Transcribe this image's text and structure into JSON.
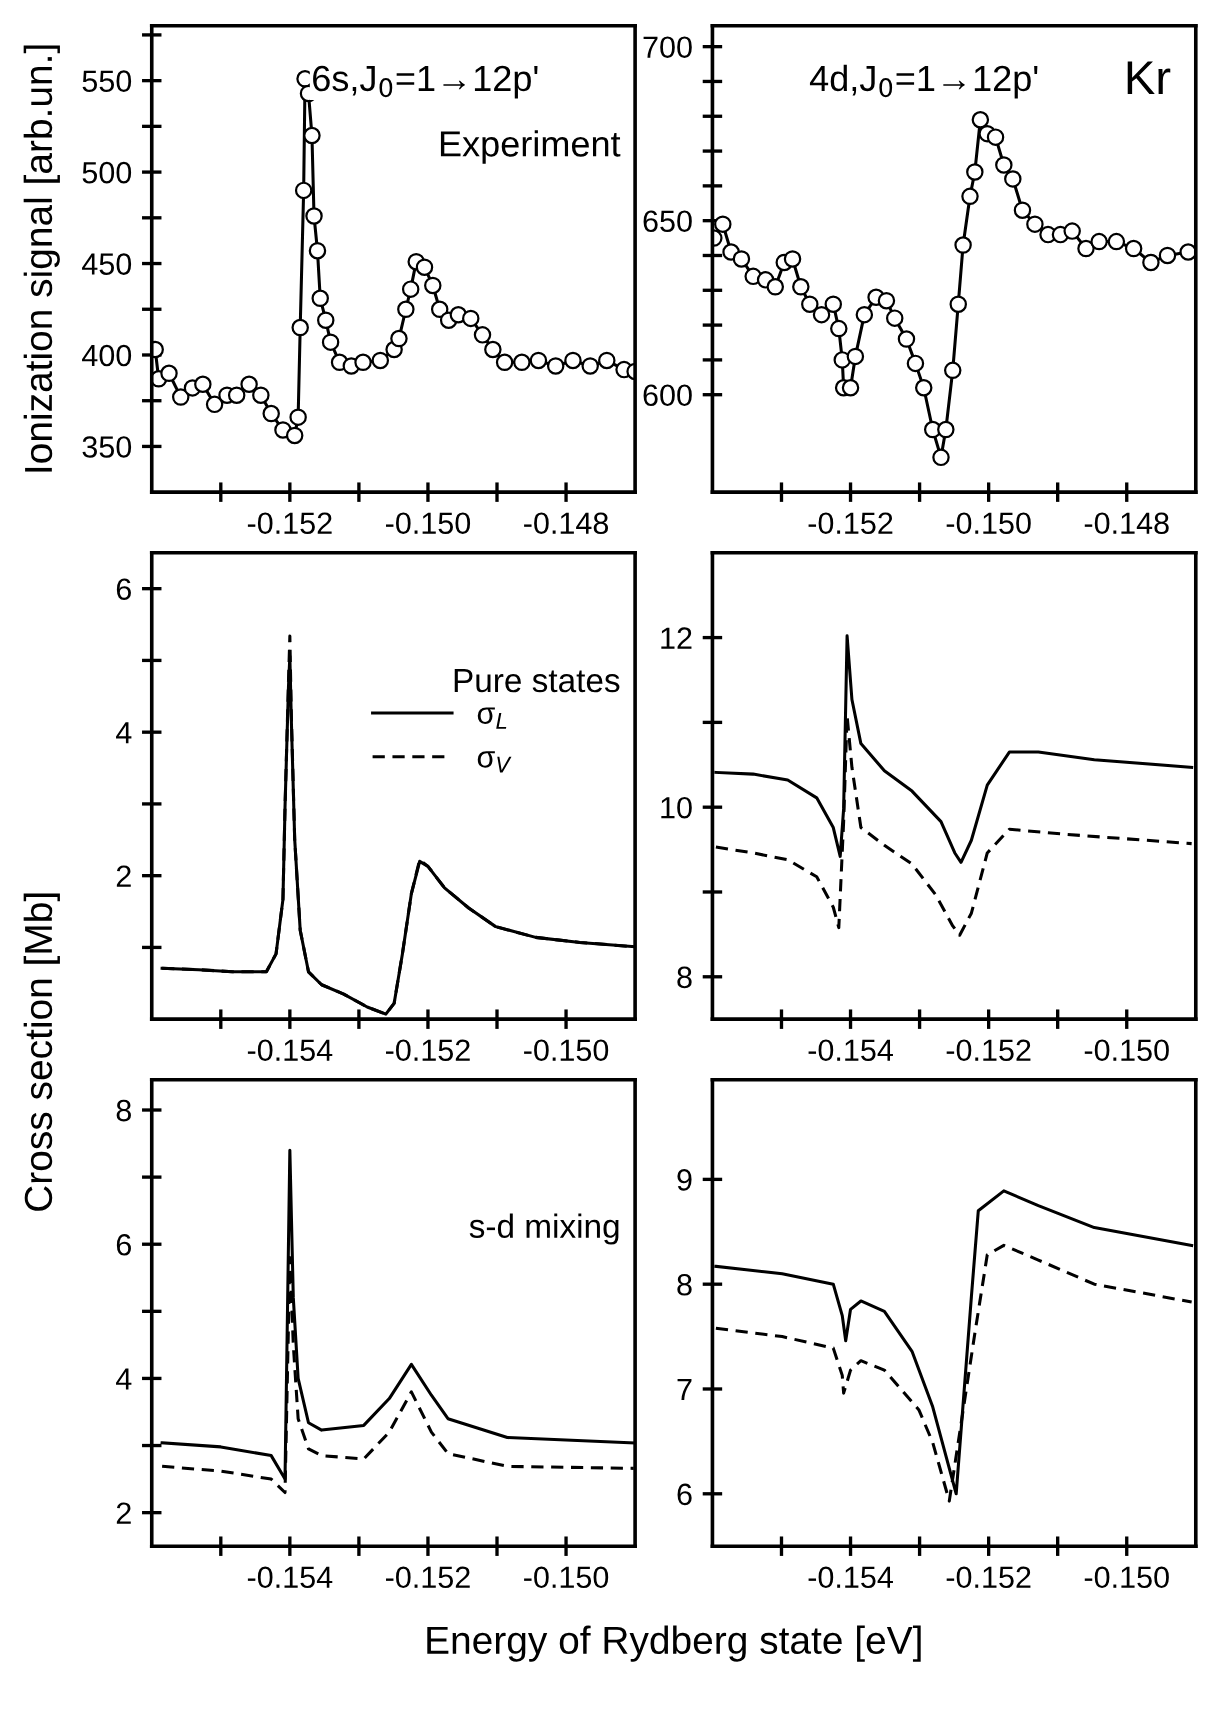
{
  "chart_data": [
    {
      "type": "line",
      "ylabel": "Ionization signal [arb.un.]",
      "annotations": [
        "6s,J$_{0}$=1→12p'",
        "Experiment"
      ],
      "xlim": [
        -0.154,
        -0.147
      ],
      "ylim": [
        325,
        580
      ],
      "xticks": [
        {
          "value": -0.153,
          "label": null
        },
        -0.152,
        {
          "value": -0.151,
          "label": null
        },
        {
          "value": -0.15,
          "label": "-0.150"
        },
        {
          "value": -0.149,
          "label": null
        },
        -0.148
      ],
      "yticks": [
        350,
        {
          "value": 375,
          "label": null
        },
        400,
        {
          "value": 425,
          "label": null
        },
        450,
        {
          "value": 475,
          "label": null
        },
        500,
        {
          "value": 525,
          "label": null
        },
        550,
        {
          "value": 575,
          "label": null
        }
      ],
      "marker": "circle",
      "grid": false,
      "legend": false,
      "series": [
        {
          "color": "#000000",
          "line_style": "solid",
          "x": [
            -0.15395,
            -0.1539,
            -0.15375,
            -0.15358,
            -0.15341,
            -0.15326,
            -0.15309,
            -0.15291,
            -0.15277,
            -0.15259,
            -0.15242,
            -0.15227,
            -0.1521,
            -0.15193,
            -0.15188,
            -0.15185,
            -0.1518,
            -0.15178,
            -0.15173,
            -0.15168,
            -0.15165,
            -0.1516,
            -0.15156,
            -0.15148,
            -0.15141,
            -0.15128,
            -0.15111,
            -0.15094,
            -0.15069,
            -0.15049,
            -0.15042,
            -0.15032,
            -0.15025,
            -0.15017,
            -0.15005,
            -0.14993,
            -0.14983,
            -0.1497,
            -0.14956,
            -0.14938,
            -0.14921,
            -0.14906,
            -0.14889,
            -0.14864,
            -0.1484,
            -0.14815,
            -0.1479,
            -0.14765,
            -0.14741,
            -0.14716,
            -0.147
          ],
          "values": [
            403,
            387,
            390,
            377,
            382,
            384,
            373,
            378,
            378,
            384,
            378,
            368,
            359,
            356,
            366,
            415,
            490,
            551,
            543,
            520,
            476,
            457,
            431,
            419,
            407,
            396,
            394,
            396,
            397,
            403,
            409,
            425,
            436,
            451,
            448,
            438,
            425,
            419,
            422,
            420,
            411,
            403,
            396,
            396,
            397,
            394,
            397,
            394,
            397,
            392,
            391
          ]
        }
      ]
    },
    {
      "type": "line",
      "annotations": [
        "4d,J$_{0}$=1→12p'",
        "Kr"
      ],
      "xlim": [
        -0.154,
        -0.147
      ],
      "ylim": [
        572,
        706
      ],
      "xticks": [
        {
          "value": -0.153,
          "label": null
        },
        -0.152,
        {
          "value": -0.151,
          "label": null
        },
        {
          "value": -0.15,
          "label": "-0.150"
        },
        {
          "value": -0.149,
          "label": null
        },
        -0.148
      ],
      "yticks": [
        600,
        {
          "value": 610,
          "label": null
        },
        {
          "value": 620,
          "label": null
        },
        {
          "value": 630,
          "label": null
        },
        {
          "value": 640,
          "label": null
        },
        650,
        {
          "value": 660,
          "label": null
        },
        {
          "value": 670,
          "label": null
        },
        {
          "value": 680,
          "label": null
        },
        {
          "value": 690,
          "label": null
        },
        700
      ],
      "marker": "circle",
      "grid": false,
      "legend": false,
      "series": [
        {
          "color": "#000000",
          "line_style": "solid",
          "x": [
            -0.15398,
            -0.15385,
            -0.15373,
            -0.15358,
            -0.15341,
            -0.15323,
            -0.15309,
            -0.15296,
            -0.15284,
            -0.15272,
            -0.15259,
            -0.15242,
            -0.15225,
            -0.15217,
            -0.15212,
            -0.1521,
            -0.152,
            -0.15193,
            -0.1518,
            -0.15163,
            -0.15148,
            -0.15136,
            -0.15119,
            -0.15106,
            -0.15094,
            -0.15081,
            -0.15069,
            -0.15062,
            -0.15052,
            -0.15044,
            -0.15037,
            -0.15027,
            -0.1502,
            -0.15012,
            -0.15002,
            -0.1499,
            -0.14978,
            -0.14965,
            -0.14951,
            -0.14933,
            -0.14914,
            -0.14896,
            -0.14879,
            -0.14859,
            -0.1484,
            -0.14815,
            -0.1479,
            -0.14765,
            -0.14741,
            -0.14711
          ],
          "values": [
            645,
            649,
            641,
            639,
            634,
            633,
            631,
            638,
            639,
            631,
            626,
            623,
            626,
            619,
            610,
            602,
            602,
            611,
            623,
            628,
            627,
            622,
            616,
            609,
            602,
            590,
            582,
            590,
            607,
            626,
            643,
            657,
            664,
            679,
            675,
            674,
            666,
            662,
            653,
            649,
            646,
            646,
            647,
            642,
            644,
            644,
            642,
            638,
            640,
            641
          ]
        }
      ]
    },
    {
      "type": "line",
      "ylabel": "Cross section [Mb]",
      "annotations": [
        "Pure states"
      ],
      "xlim": [
        -0.156,
        -0.149
      ],
      "ylim": [
        0,
        6.5
      ],
      "xticks": [
        {
          "value": -0.155,
          "label": null
        },
        -0.154,
        {
          "value": -0.153,
          "label": null
        },
        -0.152,
        {
          "value": -0.151,
          "label": null
        },
        {
          "value": -0.15,
          "label": "-0.150"
        }
      ],
      "yticks": [
        {
          "value": 1,
          "label": null
        },
        2,
        {
          "value": 3,
          "label": null
        },
        4,
        {
          "value": 5,
          "label": null
        },
        6
      ],
      "grid": false,
      "legend": "top",
      "series": [
        {
          "name": "σ$_{L}$",
          "color": "#000000",
          "line_style": "solid",
          "x": [
            -0.15585,
            -0.15532,
            -0.15483,
            -0.15434,
            -0.1542,
            -0.1541,
            -0.15407,
            -0.15402,
            -0.154,
            -0.15398,
            -0.15393,
            -0.15385,
            -0.15373,
            -0.15354,
            -0.15322,
            -0.15288,
            -0.15261,
            -0.15249,
            -0.15237,
            -0.15224,
            -0.15212,
            -0.152,
            -0.15176,
            -0.15141,
            -0.15102,
            -0.15044,
            -0.1498,
            -0.14902
          ],
          "values": [
            0.71,
            0.69,
            0.66,
            0.66,
            0.91,
            1.67,
            2.95,
            4.63,
            5.06,
            4.22,
            2.51,
            1.24,
            0.66,
            0.48,
            0.35,
            0.17,
            0.07,
            0.22,
            0.91,
            1.75,
            2.2,
            2.13,
            1.83,
            1.55,
            1.29,
            1.14,
            1.07,
            1.01
          ]
        },
        {
          "name": "σ$_{V}$",
          "color": "#000000",
          "line_style": "dashed",
          "x": [
            -0.15585,
            -0.15532,
            -0.15483,
            -0.15434,
            -0.1542,
            -0.1541,
            -0.15407,
            -0.15402,
            -0.154,
            -0.15398,
            -0.15393,
            -0.15385,
            -0.15373,
            -0.15354,
            -0.15322,
            -0.15288,
            -0.15261,
            -0.15249,
            -0.15237,
            -0.15224,
            -0.15212,
            -0.152,
            -0.15176,
            -0.15141,
            -0.15102,
            -0.15044,
            -0.1498,
            -0.14902
          ],
          "values": [
            0.71,
            0.69,
            0.66,
            0.66,
            0.91,
            1.67,
            2.95,
            4.7,
            5.34,
            4.3,
            2.51,
            1.24,
            0.66,
            0.48,
            0.35,
            0.17,
            0.07,
            0.22,
            0.91,
            1.75,
            2.22,
            2.13,
            1.83,
            1.55,
            1.29,
            1.14,
            1.07,
            1.01
          ]
        }
      ]
    },
    {
      "type": "line",
      "xlim": [
        -0.156,
        -0.149
      ],
      "ylim": [
        7.5,
        13
      ],
      "xticks": [
        {
          "value": -0.155,
          "label": null
        },
        -0.154,
        {
          "value": -0.153,
          "label": null
        },
        -0.152,
        {
          "value": -0.151,
          "label": null
        },
        {
          "value": -0.15,
          "label": "-0.150"
        }
      ],
      "yticks": [
        8,
        {
          "value": 9,
          "label": null
        },
        10,
        {
          "value": 11,
          "label": null
        },
        12
      ],
      "grid": false,
      "legend": false,
      "series": [
        {
          "color": "#000000",
          "line_style": "solid",
          "x": [
            -0.15595,
            -0.15541,
            -0.15491,
            -0.15449,
            -0.15425,
            -0.15415,
            -0.1541,
            -0.15405,
            -0.15398,
            -0.15385,
            -0.15351,
            -0.15311,
            -0.15269,
            -0.15249,
            -0.1524,
            -0.15225,
            -0.15202,
            -0.1517,
            -0.15128,
            -0.15047,
            -0.14906
          ],
          "values": [
            10.41,
            10.39,
            10.32,
            10.11,
            9.76,
            9.42,
            9.98,
            12.02,
            11.27,
            10.75,
            10.43,
            10.19,
            9.83,
            9.46,
            9.35,
            9.61,
            10.26,
            10.65,
            10.65,
            10.56,
            10.47
          ]
        },
        {
          "color": "#000000",
          "line_style": "dashed",
          "x": [
            -0.15595,
            -0.15541,
            -0.15491,
            -0.15449,
            -0.15425,
            -0.15417,
            -0.1541,
            -0.15405,
            -0.15398,
            -0.15385,
            -0.15351,
            -0.15311,
            -0.15277,
            -0.15252,
            -0.15242,
            -0.15225,
            -0.15202,
            -0.1517,
            -0.15089,
            -0.14906
          ],
          "values": [
            9.53,
            9.46,
            9.38,
            9.18,
            8.82,
            8.58,
            9.83,
            11.08,
            10.47,
            9.76,
            9.55,
            9.33,
            8.97,
            8.6,
            8.49,
            8.75,
            9.46,
            9.74,
            9.68,
            9.57
          ]
        }
      ]
    },
    {
      "type": "line",
      "xlabel": "Energy of Rydberg state [eV]",
      "annotations": [
        "s-d mixing"
      ],
      "xlim": [
        -0.156,
        -0.149
      ],
      "ylim": [
        1.5,
        8.45
      ],
      "xticks": [
        {
          "value": -0.155,
          "label": null
        },
        -0.154,
        {
          "value": -0.153,
          "label": null
        },
        -0.152,
        {
          "value": -0.151,
          "label": null
        },
        {
          "value": -0.15,
          "label": "-0.150"
        }
      ],
      "yticks": [
        2,
        {
          "value": 3,
          "label": null
        },
        4,
        {
          "value": 5,
          "label": null
        },
        6,
        {
          "value": 7,
          "label": null
        },
        8
      ],
      "grid": false,
      "legend": false,
      "series": [
        {
          "color": "#000000",
          "line_style": "solid",
          "x": [
            -0.15585,
            -0.155,
            -0.15427,
            -0.15407,
            -0.154,
            -0.15395,
            -0.15388,
            -0.15373,
            -0.15354,
            -0.15293,
            -0.15256,
            -0.15224,
            -0.15195,
            -0.15171,
            -0.15085,
            -0.14902
          ],
          "values": [
            3.04,
            2.98,
            2.85,
            2.5,
            7.4,
            5.2,
            4.0,
            3.34,
            3.23,
            3.3,
            3.7,
            4.21,
            3.75,
            3.4,
            3.12,
            3.04
          ]
        },
        {
          "color": "#000000",
          "line_style": "dashed",
          "x": [
            -0.15585,
            -0.155,
            -0.15427,
            -0.15407,
            -0.154,
            -0.15395,
            -0.15388,
            -0.15373,
            -0.15354,
            -0.15293,
            -0.15256,
            -0.15224,
            -0.15195,
            -0.15171,
            -0.15085,
            -0.14902
          ],
          "values": [
            2.69,
            2.62,
            2.5,
            2.3,
            5.8,
            4.5,
            3.4,
            2.95,
            2.85,
            2.8,
            3.2,
            3.8,
            3.2,
            2.88,
            2.69,
            2.66
          ]
        }
      ]
    },
    {
      "type": "line",
      "xlim": [
        -0.156,
        -0.149
      ],
      "ylim": [
        5.5,
        9.95
      ],
      "xticks": [
        {
          "value": -0.155,
          "label": null
        },
        -0.154,
        {
          "value": -0.153,
          "label": null
        },
        -0.152,
        {
          "value": -0.151,
          "label": null
        },
        {
          "value": -0.15,
          "label": "-0.150"
        }
      ],
      "yticks": [
        6,
        7,
        8,
        9
      ],
      "grid": false,
      "legend": false,
      "series": [
        {
          "color": "#000000",
          "line_style": "solid",
          "x": [
            -0.15595,
            -0.15499,
            -0.15425,
            -0.15412,
            -0.15407,
            -0.154,
            -0.15385,
            -0.15351,
            -0.15311,
            -0.15281,
            -0.15247,
            -0.15225,
            -0.15215,
            -0.15178,
            -0.15128,
            -0.15047,
            -0.14906
          ],
          "values": [
            8.17,
            8.1,
            8.0,
            7.7,
            7.46,
            7.76,
            7.84,
            7.74,
            7.36,
            6.83,
            6.0,
            7.88,
            8.7,
            8.89,
            8.75,
            8.54,
            8.37
          ]
        },
        {
          "color": "#000000",
          "line_style": "dashed",
          "x": [
            -0.15595,
            -0.15499,
            -0.15425,
            -0.15412,
            -0.1541,
            -0.154,
            -0.15385,
            -0.15351,
            -0.15301,
            -0.15281,
            -0.15257,
            -0.1522,
            -0.15202,
            -0.15178,
            -0.15128,
            -0.15047,
            -0.14906
          ],
          "values": [
            7.58,
            7.5,
            7.39,
            7.13,
            6.96,
            7.18,
            7.27,
            7.18,
            6.8,
            6.49,
            5.93,
            7.53,
            8.28,
            8.37,
            8.23,
            8.0,
            7.83
          ]
        }
      ]
    }
  ]
}
